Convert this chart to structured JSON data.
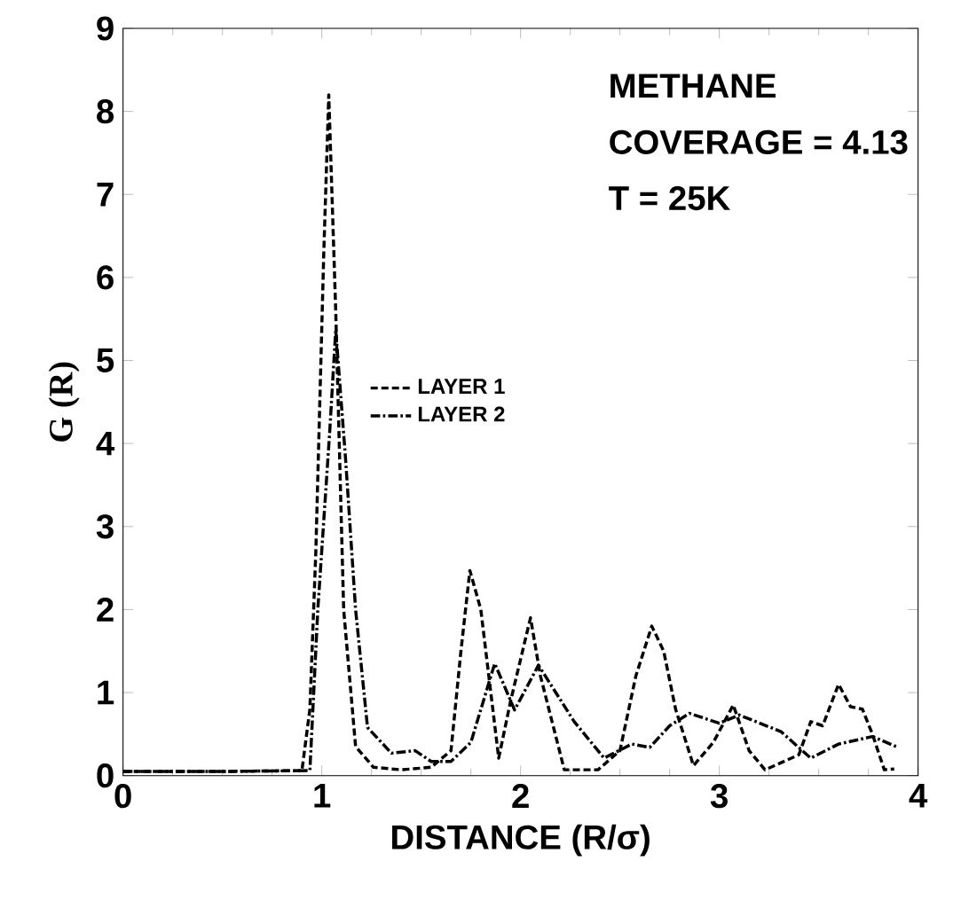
{
  "chart_data": {
    "type": "line",
    "xlabel": "DISTANCE (R/σ)",
    "ylabel": "G (R)",
    "annotations": [
      "METHANE",
      "COVERAGE = 4.13",
      "T = 25K"
    ],
    "xlim": [
      0,
      4
    ],
    "ylim": [
      0,
      9
    ],
    "xticks": [
      0,
      1,
      2,
      3,
      4
    ],
    "yticks": [
      0,
      1,
      2,
      3,
      4,
      5,
      6,
      7,
      8,
      9
    ],
    "grid": false,
    "legend": "center left",
    "marker": "none",
    "series": [
      {
        "name": "LAYER 1",
        "color": "#000000",
        "line_style": "dashed",
        "x": [
          0,
          0.5,
          0.9,
          0.94,
          0.97,
          1.01,
          1.035,
          1.07,
          1.11,
          1.17,
          1.26,
          1.4,
          1.55,
          1.65,
          1.7,
          1.745,
          1.8,
          1.89,
          1.95,
          2.0,
          2.05,
          2.1,
          2.22,
          2.39,
          2.5,
          2.58,
          2.66,
          2.72,
          2.78,
          2.87,
          2.97,
          3.07,
          3.15,
          3.23,
          3.4,
          3.46,
          3.52,
          3.6,
          3.66,
          3.72,
          3.77,
          3.83,
          3.88
        ],
        "values": [
          0.05,
          0.05,
          0.06,
          0.8,
          2.7,
          6.3,
          8.2,
          5.6,
          2.0,
          0.35,
          0.1,
          0.07,
          0.1,
          0.3,
          1.5,
          2.47,
          2.0,
          0.21,
          0.9,
          1.4,
          1.9,
          1.2,
          0.07,
          0.07,
          0.3,
          1.2,
          1.8,
          1.5,
          0.8,
          0.12,
          0.4,
          0.85,
          0.3,
          0.07,
          0.25,
          0.65,
          0.6,
          1.1,
          0.83,
          0.8,
          0.5,
          0.07,
          0.08
        ]
      },
      {
        "name": "LAYER 2",
        "color": "#000000",
        "line_style": "dashdotted",
        "x": [
          0,
          0.5,
          0.94,
          0.98,
          1.04,
          1.07,
          1.12,
          1.17,
          1.23,
          1.35,
          1.47,
          1.55,
          1.65,
          1.75,
          1.87,
          1.97,
          2.09,
          2.27,
          2.42,
          2.56,
          2.65,
          2.75,
          2.85,
          3.0,
          3.1,
          3.31,
          3.46,
          3.6,
          3.77,
          3.89
        ],
        "values": [
          0.05,
          0.05,
          0.06,
          2.0,
          4.15,
          5.37,
          3.8,
          2.0,
          0.58,
          0.27,
          0.3,
          0.17,
          0.17,
          0.4,
          1.35,
          0.79,
          1.33,
          0.65,
          0.21,
          0.38,
          0.34,
          0.6,
          0.75,
          0.63,
          0.73,
          0.53,
          0.21,
          0.38,
          0.47,
          0.35
        ]
      }
    ]
  }
}
